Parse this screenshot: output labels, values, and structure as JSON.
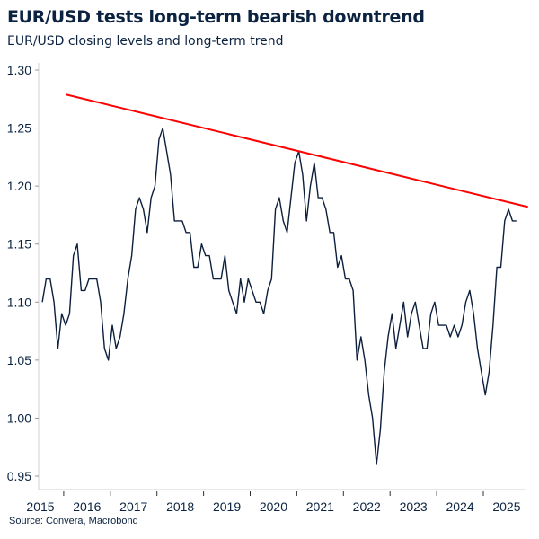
{
  "title": "EUR/USD tests long-term bearish downtrend",
  "subtitle": "EUR/USD closing levels and long-term trend",
  "source": "Source: Convera, Macrobond",
  "chart_data": {
    "type": "line",
    "title": "EUR/USD tests long-term bearish downtrend",
    "subtitle": "EUR/USD closing levels and long-term trend",
    "xlabel": "",
    "ylabel": "",
    "xlim": [
      "2015-06",
      "2025-12"
    ],
    "ylim": [
      0.95,
      1.3
    ],
    "yticks": [
      "1.30",
      "1.25",
      "1.20",
      "1.15",
      "1.10",
      "1.05",
      "1.00",
      "0.95"
    ],
    "xticks": [
      "2015",
      "2016",
      "2017",
      "2018",
      "2019",
      "2020",
      "2021",
      "2022",
      "2023",
      "2024",
      "2025"
    ],
    "grid": false,
    "colors": {
      "series": "#0d1f3c",
      "trend": "#ff0000",
      "text": "#0b2341",
      "axis": "#d0d0d0"
    },
    "series": [
      {
        "x": [
          "2015-07",
          "2015-08",
          "2015-09",
          "2015-10",
          "2015-11",
          "2015-12",
          "2016-01",
          "2016-02",
          "2016-03",
          "2016-04",
          "2016-05",
          "2016-06",
          "2016-07",
          "2016-08",
          "2016-09",
          "2016-10",
          "2016-11",
          "2016-12",
          "2017-01",
          "2017-02",
          "2017-03",
          "2017-04",
          "2017-05",
          "2017-06",
          "2017-07",
          "2017-08",
          "2017-09",
          "2017-10",
          "2017-11",
          "2017-12",
          "2018-01",
          "2018-02",
          "2018-03",
          "2018-04",
          "2018-05",
          "2018-06",
          "2018-07",
          "2018-08",
          "2018-09",
          "2018-10",
          "2018-11",
          "2018-12",
          "2019-01",
          "2019-02",
          "2019-03",
          "2019-04",
          "2019-05",
          "2019-06",
          "2019-07",
          "2019-08",
          "2019-09",
          "2019-10",
          "2019-11",
          "2019-12",
          "2020-01",
          "2020-02",
          "2020-03",
          "2020-04",
          "2020-05",
          "2020-06",
          "2020-07",
          "2020-08",
          "2020-09",
          "2020-10",
          "2020-11",
          "2020-12",
          "2021-01",
          "2021-02",
          "2021-03",
          "2021-04",
          "2021-05",
          "2021-06",
          "2021-07",
          "2021-08",
          "2021-09",
          "2021-10",
          "2021-11",
          "2021-12",
          "2022-01",
          "2022-02",
          "2022-03",
          "2022-04",
          "2022-05",
          "2022-06",
          "2022-07",
          "2022-08",
          "2022-09",
          "2022-10",
          "2022-11",
          "2022-12",
          "2023-01",
          "2023-02",
          "2023-03",
          "2023-04",
          "2023-05",
          "2023-06",
          "2023-07",
          "2023-08",
          "2023-09",
          "2023-10",
          "2023-11",
          "2023-12",
          "2024-01",
          "2024-02",
          "2024-03",
          "2024-04",
          "2024-05",
          "2024-06",
          "2024-07",
          "2024-08",
          "2024-09",
          "2024-10",
          "2024-11",
          "2024-12",
          "2025-01",
          "2025-02",
          "2025-03",
          "2025-04",
          "2025-05",
          "2025-06",
          "2025-07",
          "2025-08",
          "2025-09"
        ],
        "values": [
          1.1,
          1.12,
          1.12,
          1.1,
          1.06,
          1.09,
          1.08,
          1.09,
          1.14,
          1.15,
          1.11,
          1.11,
          1.12,
          1.12,
          1.12,
          1.1,
          1.06,
          1.05,
          1.08,
          1.06,
          1.07,
          1.09,
          1.12,
          1.14,
          1.18,
          1.19,
          1.18,
          1.16,
          1.19,
          1.2,
          1.24,
          1.25,
          1.23,
          1.21,
          1.17,
          1.17,
          1.17,
          1.16,
          1.16,
          1.13,
          1.13,
          1.15,
          1.14,
          1.14,
          1.12,
          1.12,
          1.12,
          1.14,
          1.11,
          1.1,
          1.09,
          1.12,
          1.1,
          1.12,
          1.11,
          1.1,
          1.1,
          1.09,
          1.11,
          1.12,
          1.18,
          1.19,
          1.17,
          1.16,
          1.19,
          1.22,
          1.23,
          1.21,
          1.17,
          1.2,
          1.22,
          1.19,
          1.19,
          1.18,
          1.16,
          1.16,
          1.13,
          1.14,
          1.12,
          1.12,
          1.11,
          1.05,
          1.07,
          1.05,
          1.02,
          1.0,
          0.96,
          0.99,
          1.04,
          1.07,
          1.09,
          1.06,
          1.08,
          1.1,
          1.07,
          1.09,
          1.1,
          1.08,
          1.06,
          1.06,
          1.09,
          1.1,
          1.08,
          1.08,
          1.08,
          1.07,
          1.08,
          1.07,
          1.08,
          1.1,
          1.11,
          1.09,
          1.06,
          1.04,
          1.02,
          1.04,
          1.08,
          1.13,
          1.13,
          1.17,
          1.18,
          1.17,
          1.17
        ]
      }
    ],
    "trendline": {
      "x": [
        "2016-01",
        "2025-12"
      ],
      "values": [
        1.279,
        1.182
      ]
    }
  }
}
